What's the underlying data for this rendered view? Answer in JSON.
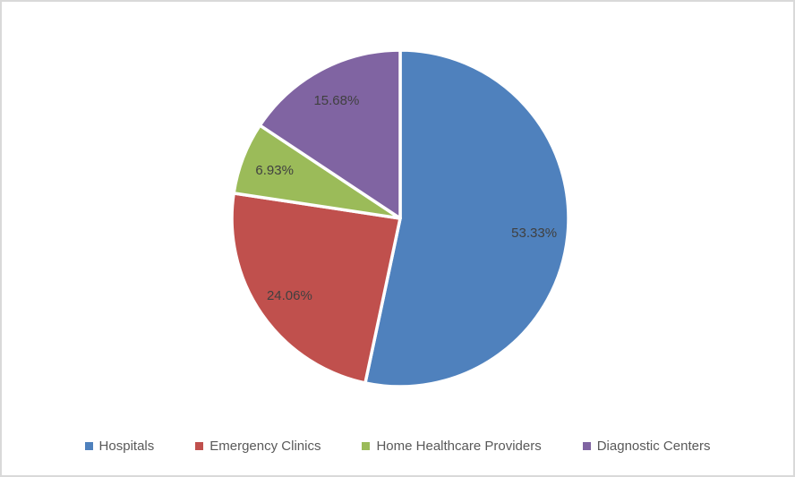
{
  "chart_data": {
    "type": "pie",
    "title": "",
    "categories": [
      "Hospitals",
      "Emergency Clinics",
      "Home Healthcare Providers",
      "Diagnostic Centers"
    ],
    "values": [
      53.33,
      24.06,
      6.93,
      15.68
    ],
    "data_labels": [
      "53.33%",
      "24.06%",
      "6.93%",
      "15.68%"
    ],
    "colors": [
      "#4F81BD",
      "#C0504D",
      "#9BBB59",
      "#8064A2"
    ],
    "start_angle_deg": 0,
    "direction": "clockwise",
    "slice_border_color": "#FFFFFF",
    "data_label_color": "#404040",
    "legend_position": "bottom"
  },
  "legend": {
    "text_color": "#595959",
    "items": [
      {
        "label": "Hospitals",
        "color": "#4F81BD"
      },
      {
        "label": "Emergency Clinics",
        "color": "#C0504D"
      },
      {
        "label": "Home Healthcare Providers",
        "color": "#9BBB59"
      },
      {
        "label": "Diagnostic Centers",
        "color": "#8064A2"
      }
    ]
  },
  "frame": {
    "background": "#FFFFFF",
    "border_color": "#D9D9D9"
  }
}
